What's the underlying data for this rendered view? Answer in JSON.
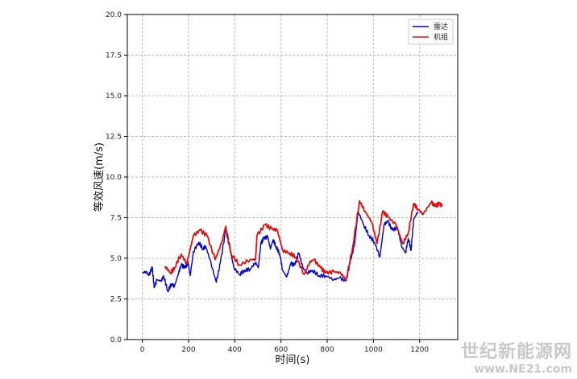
{
  "chart_data": {
    "type": "line",
    "title": "",
    "xlabel": "时间(s)",
    "ylabel": "等效风速(m/s)",
    "xlim": [
      -65,
      1365
    ],
    "ylim": [
      0,
      20
    ],
    "xticks": [
      0,
      200,
      400,
      600,
      800,
      1000,
      1200
    ],
    "yticks": [
      "0.0",
      "2.5",
      "5.0",
      "7.5",
      "10.0",
      "12.5",
      "15.0",
      "17.5",
      "20.0"
    ],
    "grid": true,
    "legend_position": "top-right",
    "series": [
      {
        "name": "雷达",
        "color": "#0000cc",
        "x": [
          0,
          16,
          28,
          43,
          51,
          63,
          81,
          92,
          110,
          127,
          139,
          157,
          168,
          186,
          198,
          207,
          221,
          244,
          262,
          274,
          291,
          320,
          338,
          361,
          379,
          396,
          420,
          443,
          467,
          490,
          502,
          513,
          525,
          543,
          554,
          566,
          578,
          595,
          607,
          625,
          642,
          660,
          677,
          695,
          712,
          736,
          765,
          794,
          829,
          853,
          882,
          899,
          917,
          934,
          958,
          981,
          1005,
          1028,
          1046,
          1063,
          1081,
          1104,
          1122,
          1139,
          1151,
          1163,
          1174,
          1192
        ],
        "y": [
          4.1,
          4.18,
          3.93,
          4.46,
          3.19,
          3.68,
          3.6,
          3.93,
          2.98,
          3.44,
          3.27,
          4.1,
          4.59,
          4.42,
          4.75,
          3.93,
          5.41,
          5.99,
          5.58,
          5.74,
          5.0,
          3.52,
          4.75,
          6.73,
          5.58,
          4.42,
          4.01,
          4.26,
          4.34,
          4.75,
          4.42,
          5.9,
          6.23,
          6.32,
          5.58,
          6.15,
          5.74,
          5.25,
          4.26,
          3.85,
          4.67,
          4.59,
          5.33,
          4.42,
          4.1,
          4.26,
          3.93,
          3.93,
          3.68,
          3.8,
          3.6,
          4.75,
          5.74,
          7.88,
          7.06,
          6.4,
          5.99,
          5.08,
          7.06,
          7.3,
          6.73,
          6.89,
          5.74,
          5.33,
          6.23,
          5.49,
          7.38,
          7.88
        ]
      },
      {
        "name": "机组",
        "color": "#e01010",
        "x": [
          98,
          122,
          139,
          168,
          192,
          221,
          250,
          280,
          315,
          344,
          361,
          385,
          420,
          467,
          490,
          496,
          531,
          560,
          584,
          607,
          636,
          665,
          701,
          724,
          742,
          771,
          794,
          829,
          858,
          882,
          911,
          940,
          964,
          993,
          1016,
          1040,
          1063,
          1098,
          1127,
          1151,
          1174,
          1192,
          1215,
          1250,
          1268,
          1286,
          1297
        ],
        "y": [
          4.51,
          4.1,
          4.42,
          5.25,
          4.67,
          6.4,
          6.73,
          6.4,
          4.92,
          5.99,
          6.97,
          5.25,
          4.59,
          4.92,
          4.92,
          6.4,
          7.06,
          6.81,
          6.73,
          5.49,
          5.33,
          5.08,
          4.01,
          4.75,
          4.92,
          4.42,
          4.1,
          4.18,
          4.1,
          3.68,
          5.74,
          8.54,
          7.88,
          7.22,
          5.9,
          7.88,
          7.55,
          7.06,
          5.9,
          6.56,
          8.37,
          8.04,
          7.71,
          8.45,
          8.21,
          8.37,
          8.21
        ]
      }
    ]
  },
  "watermark": {
    "line1": "世纪新能源网",
    "line2": "www.NE21.com"
  }
}
